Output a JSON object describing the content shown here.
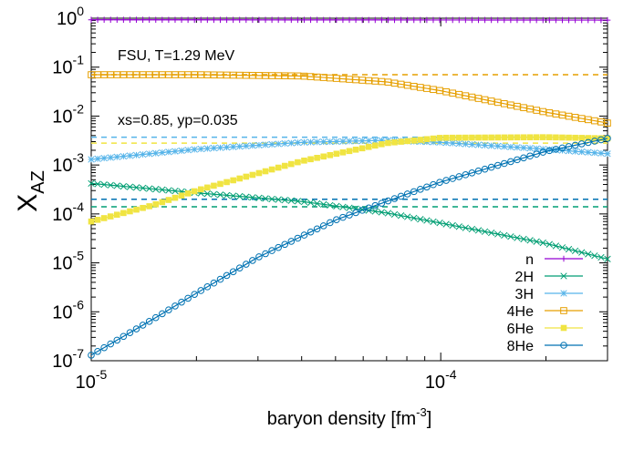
{
  "chart_data": {
    "type": "line",
    "xscale": "log",
    "yscale": "log",
    "xlim": [
      1e-05,
      0.0003
    ],
    "ylim": [
      1e-07,
      1
    ],
    "xlabel": "baryon density [fm",
    "xlabel_exp": "-3",
    "xlabel_close": "]",
    "ylabel_main": "X",
    "ylabel_sub": "AZ",
    "x_ticks": [
      {
        "value": 1e-05,
        "base": "10",
        "exp": "-5"
      },
      {
        "value": 0.0001,
        "base": "10",
        "exp": "-4"
      }
    ],
    "y_ticks": [
      {
        "value": 1,
        "base": "10",
        "exp": "0"
      },
      {
        "value": 0.1,
        "base": "10",
        "exp": "-1"
      },
      {
        "value": 0.01,
        "base": "10",
        "exp": "-2"
      },
      {
        "value": 0.001,
        "base": "10",
        "exp": "-3"
      },
      {
        "value": 0.0001,
        "base": "10",
        "exp": "-4"
      },
      {
        "value": 1e-05,
        "base": "10",
        "exp": "-5"
      },
      {
        "value": 1e-06,
        "base": "10",
        "exp": "-6"
      },
      {
        "value": 1e-07,
        "base": "10",
        "exp": "-7"
      }
    ],
    "annotations": [
      "FSU, T=1.29 MeV",
      "xs=0.85, yp=0.035"
    ],
    "series": [
      {
        "name": "n",
        "color": "#9400d3",
        "marker": "plus",
        "x": [
          1e-05,
          3e-05,
          0.0001,
          0.0003
        ],
        "y": [
          0.93,
          0.925,
          0.92,
          0.915
        ]
      },
      {
        "name": "2H",
        "color": "#009e73",
        "marker": "cross",
        "x": [
          1e-05,
          2e-05,
          4e-05,
          7e-05,
          0.0001,
          0.0002,
          0.0003
        ],
        "y": [
          0.00042,
          0.00027,
          0.00018,
          0.000105,
          6.5e-05,
          2.5e-05,
          1.2e-05
        ],
        "reference": 0.00014
      },
      {
        "name": "3H",
        "color": "#56b4e9",
        "marker": "star",
        "x": [
          1e-05,
          2e-05,
          4e-05,
          7e-05,
          0.0001,
          0.0002,
          0.0003
        ],
        "y": [
          0.0013,
          0.0021,
          0.0029,
          0.0032,
          0.0029,
          0.0021,
          0.0017
        ],
        "reference": 0.0037
      },
      {
        "name": "4He",
        "color": "#e69f00",
        "marker": "open-square",
        "x": [
          1e-05,
          2e-05,
          4e-05,
          7e-05,
          0.0001,
          0.0002,
          0.0003
        ],
        "y": [
          0.07,
          0.07,
          0.066,
          0.05,
          0.033,
          0.012,
          0.0072
        ],
        "reference": 0.07
      },
      {
        "name": "6He",
        "color": "#f0e442",
        "marker": "filled-square",
        "x": [
          1e-05,
          1.5e-05,
          2e-05,
          4e-05,
          7e-05,
          0.0001,
          0.0002,
          0.0003
        ],
        "y": [
          7e-05,
          0.00015,
          0.0003,
          0.0012,
          0.0028,
          0.0036,
          0.0037,
          0.0035
        ],
        "reference": 0.0028
      },
      {
        "name": "8He",
        "color": "#0072b2",
        "marker": "open-circle",
        "x": [
          1e-05,
          1.5e-05,
          2e-05,
          3e-05,
          5e-05,
          7e-05,
          0.0001,
          0.0002,
          0.0003
        ],
        "y": [
          1.3e-07,
          7e-07,
          2.4e-06,
          1.3e-05,
          7.5e-05,
          0.00018,
          0.00045,
          0.0019,
          0.0035
        ],
        "reference": 0.0002
      }
    ],
    "legend_position": "bottom-right"
  }
}
